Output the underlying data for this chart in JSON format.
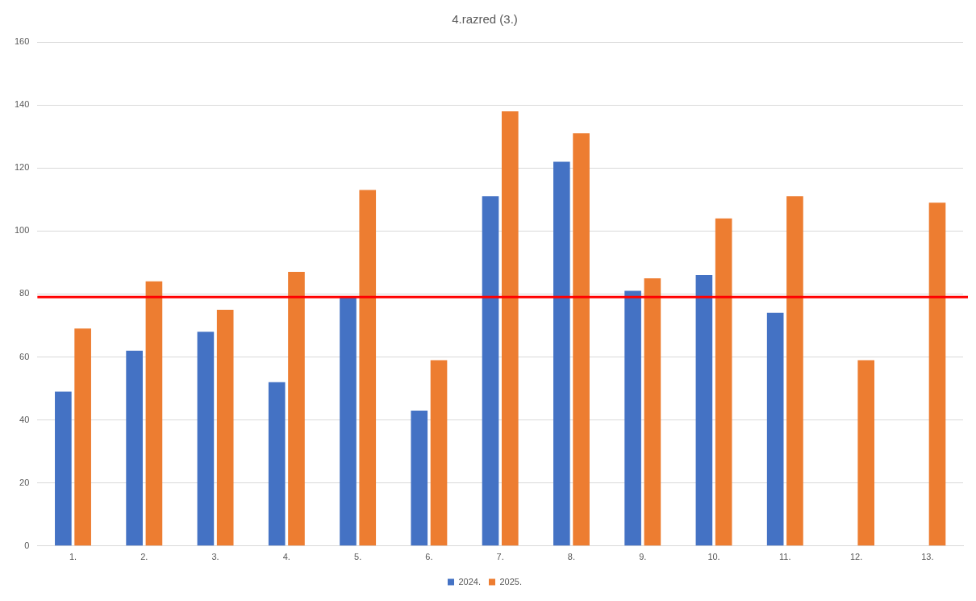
{
  "chart_data": {
    "type": "bar",
    "title": "4.razred (3.)",
    "categories": [
      "1.",
      "2.",
      "3.",
      "4.",
      "5.",
      "6.",
      "7.",
      "8.",
      "9.",
      "10.",
      "11.",
      "12.",
      "13."
    ],
    "series": [
      {
        "name": "2024.",
        "color": "#4472c4",
        "values": [
          49,
          62,
          68,
          52,
          79,
          43,
          111,
          122,
          81,
          86,
          74,
          null,
          null
        ]
      },
      {
        "name": "2025.",
        "color": "#ed7d31",
        "values": [
          69,
          84,
          75,
          87,
          113,
          59,
          138,
          131,
          85,
          104,
          111,
          59,
          109
        ]
      }
    ],
    "ylim": [
      0,
      160
    ],
    "yticks": [
      0,
      20,
      40,
      60,
      80,
      100,
      120,
      140,
      160
    ],
    "grid": "y",
    "legend": "bottom",
    "ref_lines": [
      {
        "axis": "y",
        "value": 79,
        "color": "#ff0000"
      }
    ]
  }
}
